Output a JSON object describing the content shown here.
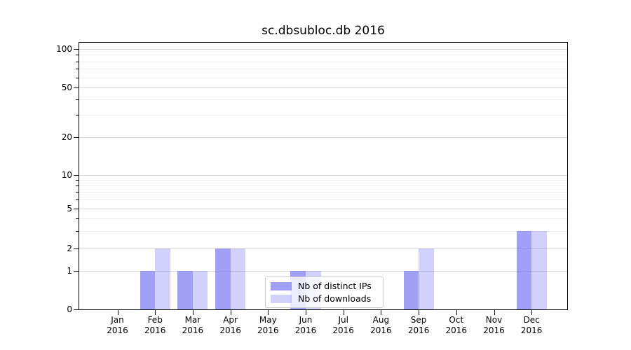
{
  "chart_data": {
    "type": "bar",
    "title": "sc.dbsubloc.db 2016",
    "xlabel": "",
    "ylabel": "",
    "categories": [
      "Jan",
      "Feb",
      "Mar",
      "Apr",
      "May",
      "Jun",
      "Jul",
      "Aug",
      "Sep",
      "Oct",
      "Nov",
      "Dec"
    ],
    "category_year": "2016",
    "series": [
      {
        "name": "Nb of distinct IPs",
        "color": "rgba(102,102,242,0.62)",
        "values": [
          0,
          1,
          1,
          2,
          0,
          1,
          0,
          0,
          1,
          0,
          0,
          3
        ]
      },
      {
        "name": "Nb of downloads",
        "color": "rgba(102,102,242,0.30)",
        "values": [
          0,
          2,
          1,
          2,
          0,
          1,
          0,
          0,
          2,
          0,
          0,
          3
        ]
      }
    ],
    "y_axis": {
      "scale": "symlog",
      "major_ticks": [
        0,
        1,
        2,
        5,
        10,
        20,
        50,
        100
      ],
      "minor_ticks": [
        3,
        4,
        6,
        7,
        8,
        9,
        30,
        40,
        60,
        70,
        80,
        90
      ],
      "range": [
        0,
        100
      ]
    },
    "grid": {
      "visible": true,
      "major_color": "#d4d4d4",
      "minor_color": "#ececec"
    },
    "legend": {
      "position": "lower center-left",
      "background": "rgba(255,255,255,0.8)"
    }
  }
}
